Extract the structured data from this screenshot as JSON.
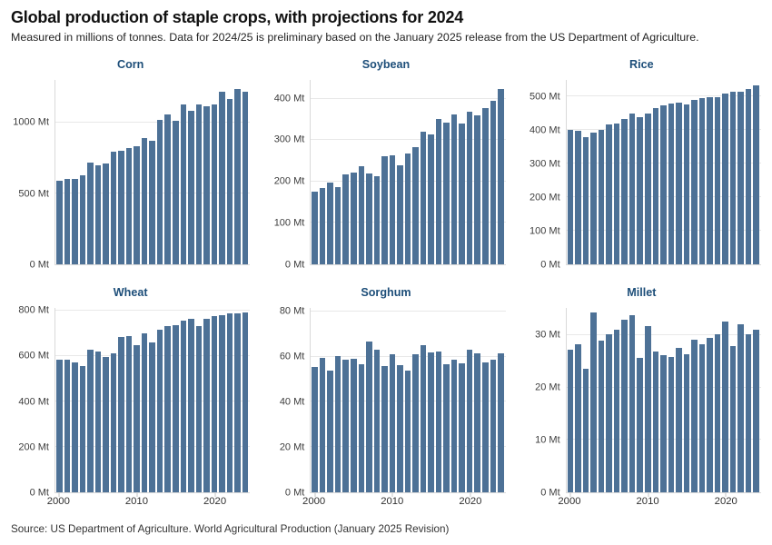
{
  "header": {
    "title": "Global production of staple crops, with projections for 2024",
    "subtitle": "Measured in millions of tonnes. Data for 2024/25 is preliminary based on the January 2025 release from the US Department of Agriculture."
  },
  "footer": {
    "source": "Source: US Department of Agriculture. World Agricultural Production (January 2025 Revision)"
  },
  "colors": {
    "bar": "#4d7196",
    "chart_title": "#1d4e79",
    "grid_line": "#e8e8e8",
    "axis_line": "#d9d9d9",
    "tick_label": "#3d3d3d"
  },
  "chart_data": [
    {
      "type": "bar",
      "title": "Corn",
      "unit": "Mt",
      "categories": [
        2000,
        2001,
        2002,
        2003,
        2004,
        2005,
        2006,
        2007,
        2008,
        2009,
        2010,
        2011,
        2012,
        2013,
        2014,
        2015,
        2016,
        2017,
        2018,
        2019,
        2020,
        2021,
        2022,
        2023,
        2024
      ],
      "values": [
        591,
        600,
        603,
        627,
        715,
        699,
        713,
        795,
        800,
        820,
        835,
        890,
        872,
        1018,
        1056,
        1014,
        1126,
        1080,
        1124,
        1117,
        1129,
        1216,
        1163,
        1236,
        1218
      ],
      "yticks": [
        0,
        500,
        1000
      ],
      "ylim": [
        0,
        1300
      ],
      "grid": "horizontal",
      "legend": "none",
      "show_xlabels": false,
      "xlabels": [
        {
          "text": "2000",
          "bar": 0
        },
        {
          "text": "2010",
          "bar": 10
        },
        {
          "text": "2020",
          "bar": 20
        }
      ]
    },
    {
      "type": "bar",
      "title": "Soybean",
      "unit": "Mt",
      "categories": [
        2000,
        2001,
        2002,
        2003,
        2004,
        2005,
        2006,
        2007,
        2008,
        2009,
        2010,
        2011,
        2012,
        2013,
        2014,
        2015,
        2016,
        2017,
        2018,
        2019,
        2020,
        2021,
        2022,
        2023,
        2024
      ],
      "values": [
        176,
        185,
        197,
        186,
        216,
        221,
        236,
        220,
        212,
        261,
        264,
        240,
        268,
        283,
        320,
        314,
        350,
        342,
        361,
        340,
        368,
        360,
        378,
        395,
        424
      ],
      "yticks": [
        0,
        100,
        200,
        300,
        400
      ],
      "ylim": [
        0,
        445
      ],
      "grid": "horizontal",
      "legend": "none",
      "show_xlabels": false,
      "xlabels": [
        {
          "text": "2000",
          "bar": 0
        },
        {
          "text": "2010",
          "bar": 10
        },
        {
          "text": "2020",
          "bar": 20
        }
      ]
    },
    {
      "type": "bar",
      "title": "Rice",
      "unit": "Mt",
      "categories": [
        2000,
        2001,
        2002,
        2003,
        2004,
        2005,
        2006,
        2007,
        2008,
        2009,
        2010,
        2011,
        2012,
        2013,
        2014,
        2015,
        2016,
        2017,
        2018,
        2019,
        2020,
        2021,
        2022,
        2023,
        2024
      ],
      "values": [
        400,
        399,
        378,
        392,
        401,
        417,
        421,
        433,
        449,
        440,
        451,
        467,
        474,
        479,
        482,
        477,
        490,
        495,
        499,
        498,
        509,
        515,
        514,
        522,
        534
      ],
      "yticks": [
        0,
        100,
        200,
        300,
        400,
        500
      ],
      "ylim": [
        0,
        550
      ],
      "grid": "horizontal",
      "legend": "none",
      "show_xlabels": false,
      "xlabels": [
        {
          "text": "2000",
          "bar": 0
        },
        {
          "text": "2010",
          "bar": 10
        },
        {
          "text": "2020",
          "bar": 20
        }
      ]
    },
    {
      "type": "bar",
      "title": "Wheat",
      "unit": "Mt",
      "categories": [
        2000,
        2001,
        2002,
        2003,
        2004,
        2005,
        2006,
        2007,
        2008,
        2009,
        2010,
        2011,
        2012,
        2013,
        2014,
        2015,
        2016,
        2017,
        2018,
        2019,
        2020,
        2021,
        2022,
        2023,
        2024
      ],
      "values": [
        585,
        584,
        571,
        557,
        627,
        619,
        596,
        611,
        685,
        687,
        649,
        700,
        659,
        717,
        733,
        738,
        757,
        763,
        732,
        764,
        776,
        780,
        790,
        789,
        793
      ],
      "yticks": [
        0,
        200,
        400,
        600,
        800
      ],
      "ylim": [
        0,
        812
      ],
      "grid": "horizontal",
      "legend": "none",
      "show_xlabels": true,
      "xlabels": [
        {
          "text": "2000",
          "bar": 0
        },
        {
          "text": "2010",
          "bar": 10
        },
        {
          "text": "2020",
          "bar": 20
        }
      ]
    },
    {
      "type": "bar",
      "title": "Sorghum",
      "unit": "Mt",
      "categories": [
        2000,
        2001,
        2002,
        2003,
        2004,
        2005,
        2006,
        2007,
        2008,
        2009,
        2010,
        2011,
        2012,
        2013,
        2014,
        2015,
        2016,
        2017,
        2018,
        2019,
        2020,
        2021,
        2022,
        2023,
        2024
      ],
      "values": [
        55.5,
        59.5,
        54,
        60.1,
        58.5,
        59,
        56.5,
        66.5,
        63,
        56,
        61,
        56.2,
        54,
        61,
        65,
        62,
        62.2,
        56.5,
        58.5,
        57,
        63,
        61.3,
        57.5,
        58.5,
        61.5
      ],
      "yticks": [
        0,
        20,
        40,
        60,
        80
      ],
      "ylim": [
        0,
        81.5
      ],
      "grid": "horizontal",
      "legend": "none",
      "show_xlabels": true,
      "xlabels": [
        {
          "text": "2000",
          "bar": 0
        },
        {
          "text": "2010",
          "bar": 10
        },
        {
          "text": "2020",
          "bar": 20
        }
      ]
    },
    {
      "type": "bar",
      "title": "Millet",
      "unit": "Mt",
      "categories": [
        2000,
        2001,
        2002,
        2003,
        2004,
        2005,
        2006,
        2007,
        2008,
        2009,
        2010,
        2011,
        2012,
        2013,
        2014,
        2015,
        2016,
        2017,
        2018,
        2019,
        2020,
        2021,
        2022,
        2023,
        2024
      ],
      "values": [
        27.3,
        28.3,
        23.5,
        34.3,
        29,
        30.2,
        31,
        33,
        33.9,
        25.7,
        31.7,
        26.9,
        26.2,
        25.8,
        27.6,
        26.3,
        29.2,
        28.3,
        29.5,
        30.1,
        32.6,
        27.9,
        32.1,
        30.1,
        31
      ],
      "yticks": [
        0,
        10,
        20,
        30
      ],
      "ylim": [
        0,
        35.2
      ],
      "grid": "horizontal",
      "legend": "none",
      "show_xlabels": true,
      "xlabels": [
        {
          "text": "2000",
          "bar": 0
        },
        {
          "text": "2010",
          "bar": 10
        },
        {
          "text": "2020",
          "bar": 20
        }
      ]
    }
  ]
}
